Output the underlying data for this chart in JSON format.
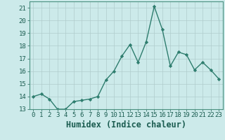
{
  "x": [
    0,
    1,
    2,
    3,
    4,
    5,
    6,
    7,
    8,
    9,
    10,
    11,
    12,
    13,
    14,
    15,
    16,
    17,
    18,
    19,
    20,
    21,
    22,
    23
  ],
  "y": [
    14.0,
    14.2,
    13.8,
    13.0,
    13.0,
    13.6,
    13.7,
    13.8,
    14.0,
    15.3,
    16.0,
    17.2,
    18.1,
    16.7,
    18.3,
    21.1,
    19.3,
    16.4,
    17.5,
    17.3,
    16.1,
    16.7,
    16.1,
    15.4
  ],
  "line_color": "#2e7d6e",
  "marker": "D",
  "marker_size": 2.2,
  "line_width": 1.0,
  "bg_color": "#cceaea",
  "grid_color": "#b0cccc",
  "xlabel": "Humidex (Indice chaleur)",
  "ylim": [
    13,
    21.5
  ],
  "xlim": [
    -0.5,
    23.5
  ],
  "yticks": [
    13,
    14,
    15,
    16,
    17,
    18,
    19,
    20,
    21
  ],
  "xticks": [
    0,
    1,
    2,
    3,
    4,
    5,
    6,
    7,
    8,
    9,
    10,
    11,
    12,
    13,
    14,
    15,
    16,
    17,
    18,
    19,
    20,
    21,
    22,
    23
  ],
  "tick_fontsize": 6.5,
  "xlabel_fontsize": 8.5,
  "text_color": "#1a5c50",
  "spine_color": "#4a9080"
}
